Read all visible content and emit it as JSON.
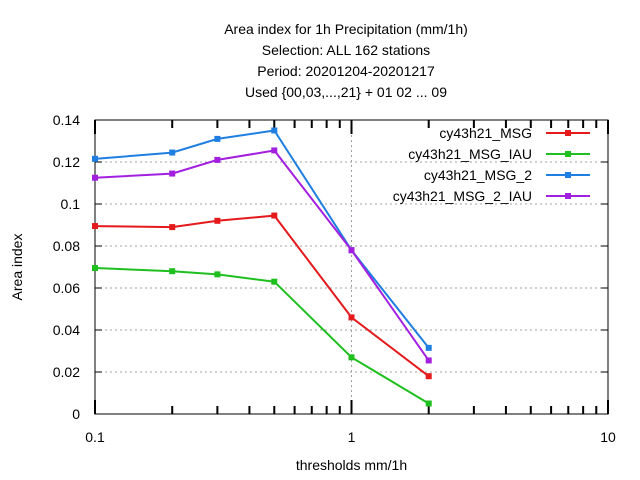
{
  "chart_data": {
    "type": "line",
    "title_lines": [
      "Area index  for 1h Precipitation (mm/1h)",
      "Selection: ALL    162 stations",
      "Period: 20201204-20201217",
      "Used {00,03,...,21} + 01 02 ... 09"
    ],
    "xlabel": "thresholds mm/1h",
    "ylabel": "Area index",
    "x_scale": "log",
    "xlim": [
      0.1,
      10
    ],
    "ylim": [
      0,
      0.14
    ],
    "x_ticks": [
      0.1,
      1,
      10
    ],
    "x_tick_labels": [
      "0.1",
      "1",
      "10"
    ],
    "y_ticks": [
      0,
      0.02,
      0.04,
      0.06,
      0.08,
      0.1,
      0.12,
      0.14
    ],
    "y_tick_labels": [
      "0",
      "0.02",
      "0.04",
      "0.06",
      "0.08",
      "0.1",
      "0.12",
      "0.14"
    ],
    "grid": true,
    "legend_position": "top-right",
    "x": [
      0.1,
      0.2,
      0.3,
      0.5,
      1,
      2
    ],
    "series": [
      {
        "name": "cy43h21_MSG",
        "color": "#e41a1c",
        "values": [
          0.0895,
          0.089,
          0.092,
          0.0945,
          0.046,
          0.018
        ]
      },
      {
        "name": "cy43h21_MSG_IAU",
        "color": "#1fbf1f",
        "values": [
          0.0695,
          0.068,
          0.0665,
          0.063,
          0.027,
          0.005
        ]
      },
      {
        "name": "cy43h21_MSG_2",
        "color": "#1e7fe0",
        "values": [
          0.1215,
          0.1245,
          0.131,
          0.135,
          0.078,
          0.0315
        ]
      },
      {
        "name": "cy43h21_MSG_2_IAU",
        "color": "#a31fe0",
        "values": [
          0.1125,
          0.1145,
          0.121,
          0.1255,
          0.078,
          0.0255
        ]
      }
    ]
  }
}
